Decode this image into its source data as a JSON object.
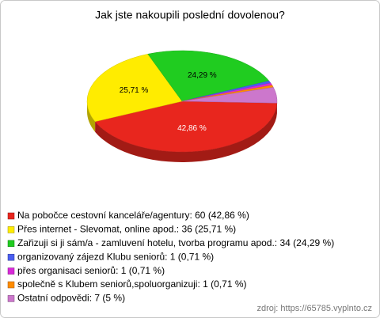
{
  "chart_data": {
    "type": "pie",
    "title": "Jak jste nakoupili poslední dovolenou?",
    "categories": [
      "Na pobočce cestovní kanceláře/agentury: 60 (42,86 %)",
      "Přes internet - Slevomat, online apod.: 36 (25,71 %)",
      "Zařizuji si ji sám/a - zamluvení hotelu, tvorba programu apod.: 34 (24,29 %)",
      "organizovaný zájezd Klubu seniorů: 1 (0,71 %)",
      "přes organisaci seniorů: 1 (0,71 %)",
      "společně s Klubem seniorů,spoluorganizuji: 1 (0,71 %)",
      "Ostatní odpovědi: 7 (5 %)"
    ],
    "values": [
      42.86,
      25.71,
      24.29,
      0.71,
      0.71,
      0.71,
      5
    ],
    "value_labels": [
      "42,86 %",
      "25,71 %",
      "24,29 %",
      null,
      null,
      null,
      null
    ],
    "colors": [
      "#e8261e",
      "#ffec00",
      "#20cc20",
      "#4a5ef0",
      "#d82ad8",
      "#ff8c00",
      "#cc77cc"
    ],
    "source": "zdroj: https://65785.vyplnto.cz"
  }
}
